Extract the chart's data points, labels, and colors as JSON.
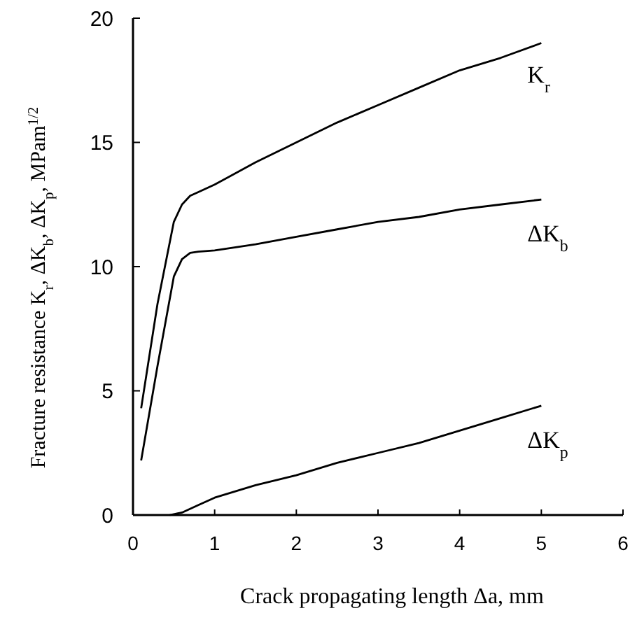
{
  "chart_data": {
    "type": "line",
    "xlabel": "Crack propagating length Δa, mm",
    "ylabel": "Fracture resistance K$_{r}$, ΔK$_{b}$, ΔK$_{p}$, MPam$^{1/2}$",
    "xlim": [
      0,
      6
    ],
    "xticks": [
      0,
      1,
      2,
      3,
      4,
      5,
      6
    ],
    "ylim": [
      0,
      20
    ],
    "yticks": [
      0,
      5,
      10,
      15,
      20
    ],
    "grid": false,
    "marker": "none",
    "line_style": "solid",
    "series": [
      {
        "name": "K$_{r}$",
        "color": "#000000",
        "x": [
          0.1,
          0.3,
          0.5,
          0.6,
          0.7,
          0.8,
          1,
          1.5,
          2,
          2.5,
          3,
          3.5,
          4,
          4.5,
          5
        ],
        "values": [
          4.3,
          8.5,
          11.8,
          12.5,
          12.85,
          13.0,
          13.3,
          14.2,
          15.0,
          15.8,
          16.5,
          17.2,
          17.9,
          18.4,
          19.0
        ]
      },
      {
        "name": "ΔK$_{b}$",
        "color": "#000000",
        "x": [
          0.1,
          0.3,
          0.5,
          0.6,
          0.7,
          0.8,
          1,
          1.5,
          2,
          2.5,
          3,
          3.5,
          4,
          4.5,
          5
        ],
        "values": [
          2.2,
          6.0,
          9.6,
          10.3,
          10.55,
          10.6,
          10.65,
          10.9,
          11.2,
          11.5,
          11.8,
          12.0,
          12.3,
          12.5,
          12.7
        ]
      },
      {
        "name": "ΔK$_{p}$",
        "color": "#000000",
        "x": [
          0.45,
          0.6,
          0.8,
          1,
          1.5,
          2,
          2.5,
          3,
          3.5,
          4,
          4.5,
          5
        ],
        "values": [
          0,
          0.1,
          0.4,
          0.7,
          1.2,
          1.6,
          2.1,
          2.5,
          2.9,
          3.4,
          3.9,
          4.4
        ]
      }
    ]
  }
}
